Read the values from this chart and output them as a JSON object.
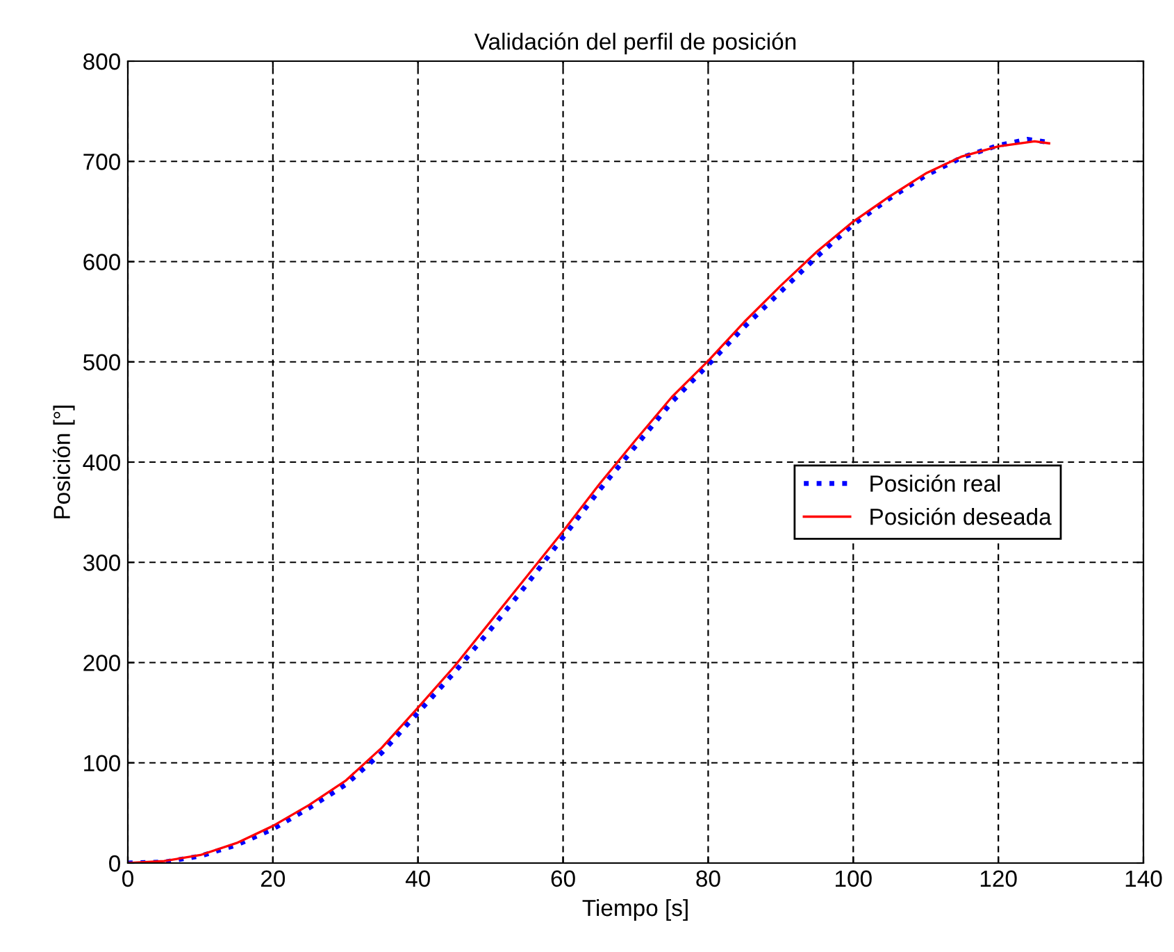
{
  "chart_data": {
    "type": "line",
    "title": "Validación del perfil de posición",
    "xlabel": "Tiempo [s]",
    "ylabel": "Posición [°]",
    "xlim": [
      0,
      140
    ],
    "xticks": [
      0,
      20,
      40,
      60,
      80,
      100,
      120,
      140
    ],
    "ylim": [
      0,
      800
    ],
    "yticks": [
      0,
      100,
      200,
      300,
      400,
      500,
      600,
      700,
      800
    ],
    "grid": true,
    "legend": "right",
    "series": [
      {
        "name": "Posición real",
        "color": "#0000ff",
        "line_style": "dotted",
        "x": [
          0,
          5,
          10,
          15,
          20,
          25,
          30,
          35,
          40,
          45,
          50,
          55,
          60,
          65,
          70,
          75,
          80,
          85,
          90,
          95,
          100,
          105,
          110,
          115,
          120,
          124,
          127
        ],
        "values": [
          0,
          1,
          7,
          18,
          34,
          55,
          78,
          110,
          150,
          190,
          233,
          278,
          325,
          372,
          416,
          460,
          497,
          535,
          570,
          605,
          637,
          663,
          686,
          704,
          716,
          722,
          719
        ]
      },
      {
        "name": "Posición deseada",
        "color": "#ff0000",
        "line_style": "solid",
        "x": [
          0,
          5,
          10,
          15,
          20,
          25,
          30,
          35,
          40,
          45,
          50,
          55,
          60,
          65,
          70,
          75,
          80,
          85,
          90,
          95,
          100,
          105,
          110,
          115,
          120,
          125,
          127
        ],
        "values": [
          0,
          2,
          8,
          20,
          37,
          58,
          82,
          115,
          155,
          196,
          241,
          286,
          331,
          378,
          422,
          465,
          501,
          540,
          576,
          610,
          640,
          665,
          688,
          705,
          715,
          720,
          718
        ]
      }
    ]
  }
}
